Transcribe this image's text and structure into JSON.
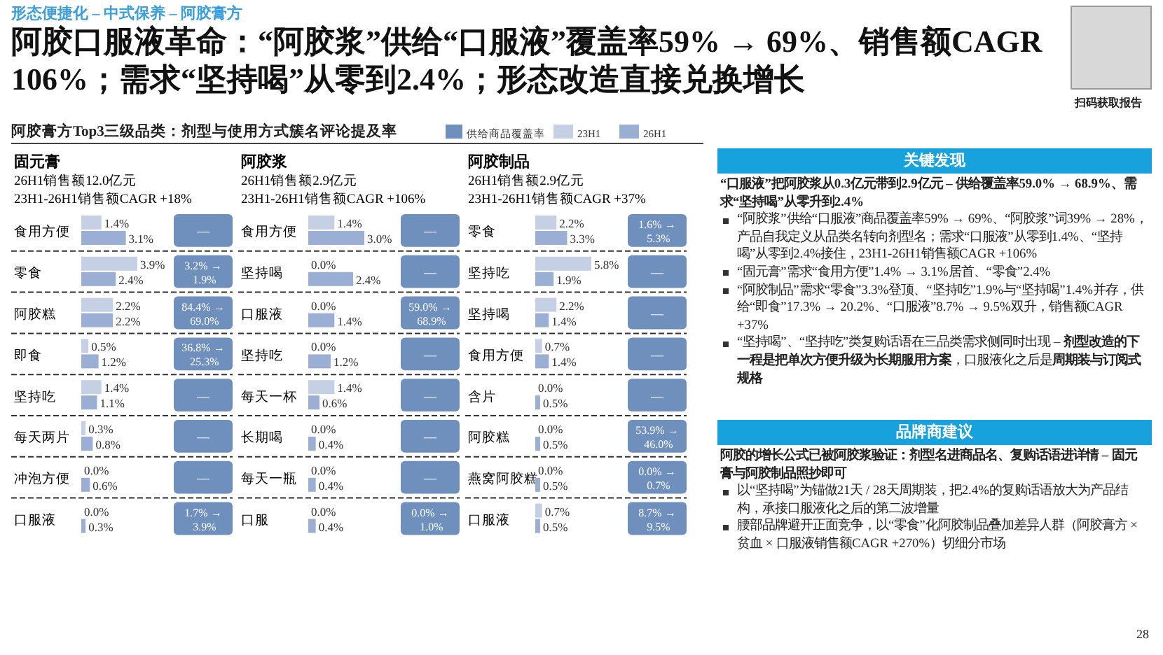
{
  "chart_data": [
    {
      "type": "other",
      "title": "阿胶口服液革命：“阿胶浆”供给“口服液”覆盖率59% → 69%、销售额CAGR 106%；需求“坚持喝”从零到2.4%；形态改造直接兑换增长",
      "subtitle": "形态便捷化 – 中式保养 – 阿胶膏方",
      "annotations": [
        "扫码获取报告",
        "阿胶膏方Top3三级品类：剂型与使用方式簇名评论提及率",
        "供给商品覆盖率",
        "28"
      ]
    },
    {
      "type": "bar",
      "orientation": "horizontal",
      "title": "固元膏",
      "subtitle": "26H1销售额12.0亿元",
      "legend": "top right",
      "categories": [
        "食用方便",
        "零食",
        "阿胶糕",
        "即食",
        "坚持吃",
        "每天两片",
        "冲泡方便",
        "口服液"
      ],
      "series": [
        {
          "name": "23H1",
          "color": "#c6d0e4",
          "values": [
            1.4,
            3.9,
            2.2,
            0.5,
            1.4,
            0.3,
            0.0,
            0.0
          ],
          "value_labels": [
            "1.4%",
            "3.9%",
            "2.2%",
            "0.5%",
            "1.4%",
            "0.3%",
            "0.0%",
            "0.0%"
          ]
        },
        {
          "name": "26H1",
          "color": "#9aafd3",
          "values": [
            3.1,
            2.4,
            2.2,
            1.2,
            1.1,
            0.8,
            0.6,
            0.3
          ],
          "value_labels": [
            "3.1%",
            "2.4%",
            "2.2%",
            "1.2%",
            "1.1%",
            "0.8%",
            "0.6%",
            "0.3%"
          ]
        }
      ],
      "annotations": [
        "23H1-26H1销售额CAGR +18%",
        "—",
        "3.2% → 1.9%",
        "84.4% → 69.0%",
        "36.8% → 25.3%",
        "—",
        "—",
        "—",
        "1.7% → 3.9%"
      ]
    },
    {
      "type": "bar",
      "orientation": "horizontal",
      "title": "阿胶浆",
      "subtitle": "26H1销售额2.9亿元",
      "relative": false,
      "categories": [
        "食用方便",
        "坚持喝",
        "口服液",
        "坚持吃",
        "每天一杯",
        "长期喝",
        "每天一瓶",
        "口服"
      ],
      "series": [
        {
          "color": "#c6d0e4",
          "values": [
            1.4,
            0.0,
            0.0,
            0.0,
            1.4,
            0.0,
            0.0,
            0.0
          ],
          "value_labels": [
            "1.4%",
            "0.0%",
            "0.0%",
            "0.0%",
            "1.4%",
            "0.0%",
            "0.0%",
            "0.0%"
          ]
        },
        {
          "color": "#9aafd3",
          "values": [
            3.0,
            2.4,
            1.4,
            1.2,
            0.6,
            0.4,
            0.4,
            0.4
          ],
          "value_labels": [
            "3.0%",
            "2.4%",
            "1.4%",
            "1.2%",
            "0.6%",
            "0.4%",
            "0.4%",
            "0.4%"
          ]
        }
      ],
      "annotations": [
        "23H1-26H1销售额CAGR +106%",
        "—",
        "—",
        "59.0% → 68.9%",
        "—",
        "—",
        "—",
        "—",
        "0.0% → 1.0%"
      ]
    },
    {
      "type": "bar",
      "orientation": "horizontal",
      "title": "阿胶制品",
      "subtitle": "26H1销售额2.9亿元",
      "relative": false,
      "categories": [
        "零食",
        "坚持吃",
        "坚持喝",
        "食用方便",
        "含片",
        "阿胶糕",
        "燕窝阿胶糕",
        "口服液"
      ],
      "series": [
        {
          "color": "#c6d0e4",
          "values": [
            2.2,
            5.8,
            2.2,
            0.7,
            0.0,
            0.0,
            0.0,
            0.7
          ],
          "value_labels": [
            "2.2%",
            "5.8%",
            "2.2%",
            "0.7%",
            "0.0%",
            "0.0%",
            "0.0%",
            "0.7%"
          ]
        },
        {
          "color": "#9aafd3",
          "values": [
            3.3,
            1.9,
            1.4,
            1.4,
            0.5,
            0.5,
            0.5,
            0.5
          ],
          "value_labels": [
            "3.3%",
            "1.9%",
            "1.4%",
            "1.4%",
            "0.5%",
            "0.5%",
            "0.5%",
            "0.5%"
          ]
        }
      ],
      "annotations": [
        "23H1-26H1销售额CAGR +37%",
        "1.6% → 5.3%",
        "—",
        "—",
        "—",
        "—",
        "53.9% → 46.0%",
        "0.0% → 0.7%",
        "8.7% → 9.5%"
      ]
    },
    {
      "type": "other",
      "title": "关键发现",
      "annotations": [
        "“口服液”把阿胶浆从0.3亿元带到2.9亿元 – 供给覆盖率59.0% → 68.9%、需求“坚持喝”从零升到2.4%",
        "“阿胶浆”供给“口服液”商品覆盖率59% → 69%、“阿胶浆”词39% → 28%，产品自我定义从品类名转向剂型名；需求“口服液”从零到1.4%、“坚持喝”从零到2.4%接住，23H1-26H1销售额CAGR +106%",
        "“固元膏”需求“食用方便”1.4% → 3.1%居首、“零食”2.4%",
        "“阿胶制品”需求“零食”3.3%登顶、“坚持吃”1.9%与“坚持喝”1.4%并存，供给“即食”17.3% → 20.2%、“口服液”8.7% → 9.5%双升，销售额CAGR +37%",
        "“坚持喝”、“坚持吃”类复购话语在三品类需求侧同时出现 – **剂型改造的下一程是把单次方便升级为长期服用方案**，口服液化之后是**周期装与订阅式规格**"
      ]
    },
    {
      "type": "other",
      "title": "品牌商建议",
      "annotations": [
        "阿胶的增长公式已被阿胶浆验证：剂型名进商品名、复购话语进详情 – 固元膏与阿胶制品照抄即可",
        "以“坚持喝”为锚做21天 / 28天周期装，把2.4%的复购话语放大为产品结构，承接口服液化之后的第二波增量",
        "腰部品牌避开正面竞争，以“零食”化阿胶制品叠加差异人群（阿胶膏方 × 贫血 × 口服液销售额CAGR +270%）切细分市场"
      ]
    }
  ]
}
